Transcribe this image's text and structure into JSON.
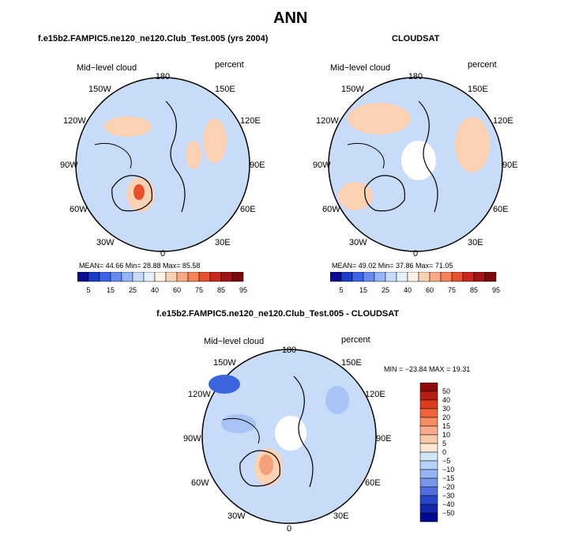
{
  "title": "ANN",
  "variable": "Mid−level cloud",
  "units": "percent",
  "lon_labels": [
    "180",
    "150E",
    "120E",
    "90E",
    "60E",
    "30E",
    "0",
    "30W",
    "60W",
    "90W",
    "120W",
    "150W"
  ],
  "panels": [
    {
      "title": "f.e15b2.FAMPIC5.ne120_ne120.Club_Test.005 (yrs 2004)",
      "stats": "MEAN=   44.66   Min=   28.88   Max=   85.58"
    },
    {
      "title": "CLOUDSAT",
      "stats": "MEAN=   49.02   Min=   37.86   Max=   71.05"
    },
    {
      "title": "f.e15b2.FAMPIC5.ne120_ne120.Club_Test.005 - CLOUDSAT",
      "stats": "MIN = −23.84  MAX =   19.31"
    }
  ],
  "colorbar_abs": {
    "labels": [
      "5",
      "15",
      "25",
      "40",
      "60",
      "75",
      "85",
      "95"
    ],
    "colors": [
      "#0a0a8c",
      "#1a3cc8",
      "#3c64e6",
      "#648cf0",
      "#96b4f8",
      "#c8dcfa",
      "#e6f0fc",
      "#fff4e6",
      "#fcd2b4",
      "#faaa82",
      "#f5825a",
      "#e6502d",
      "#c8281e",
      "#a01414",
      "#780a0a"
    ]
  },
  "colorbar_diff": {
    "labels": [
      "50",
      "40",
      "30",
      "20",
      "15",
      "10",
      "5",
      "0",
      "−5",
      "−10",
      "−15",
      "−20",
      "−30",
      "−40",
      "−50"
    ],
    "colors": [
      "#8c0a0a",
      "#b41e14",
      "#dc3c1e",
      "#f0643c",
      "#f58c64",
      "#faaa8c",
      "#fcc8aa",
      "#fde6d2",
      "#d2e6fa",
      "#b4d2f8",
      "#96b4f0",
      "#7896e6",
      "#506edc",
      "#2846c8",
      "#1428aa",
      "#000a8c"
    ]
  },
  "map_colors": {
    "ocean": "#c8dcfa",
    "blue": "#a8c4f4",
    "deep": "#3c64dc",
    "warm": "#fcd2b4",
    "warmer": "#f5a078",
    "hot": "#e6502d",
    "gap": "#ffffff"
  }
}
